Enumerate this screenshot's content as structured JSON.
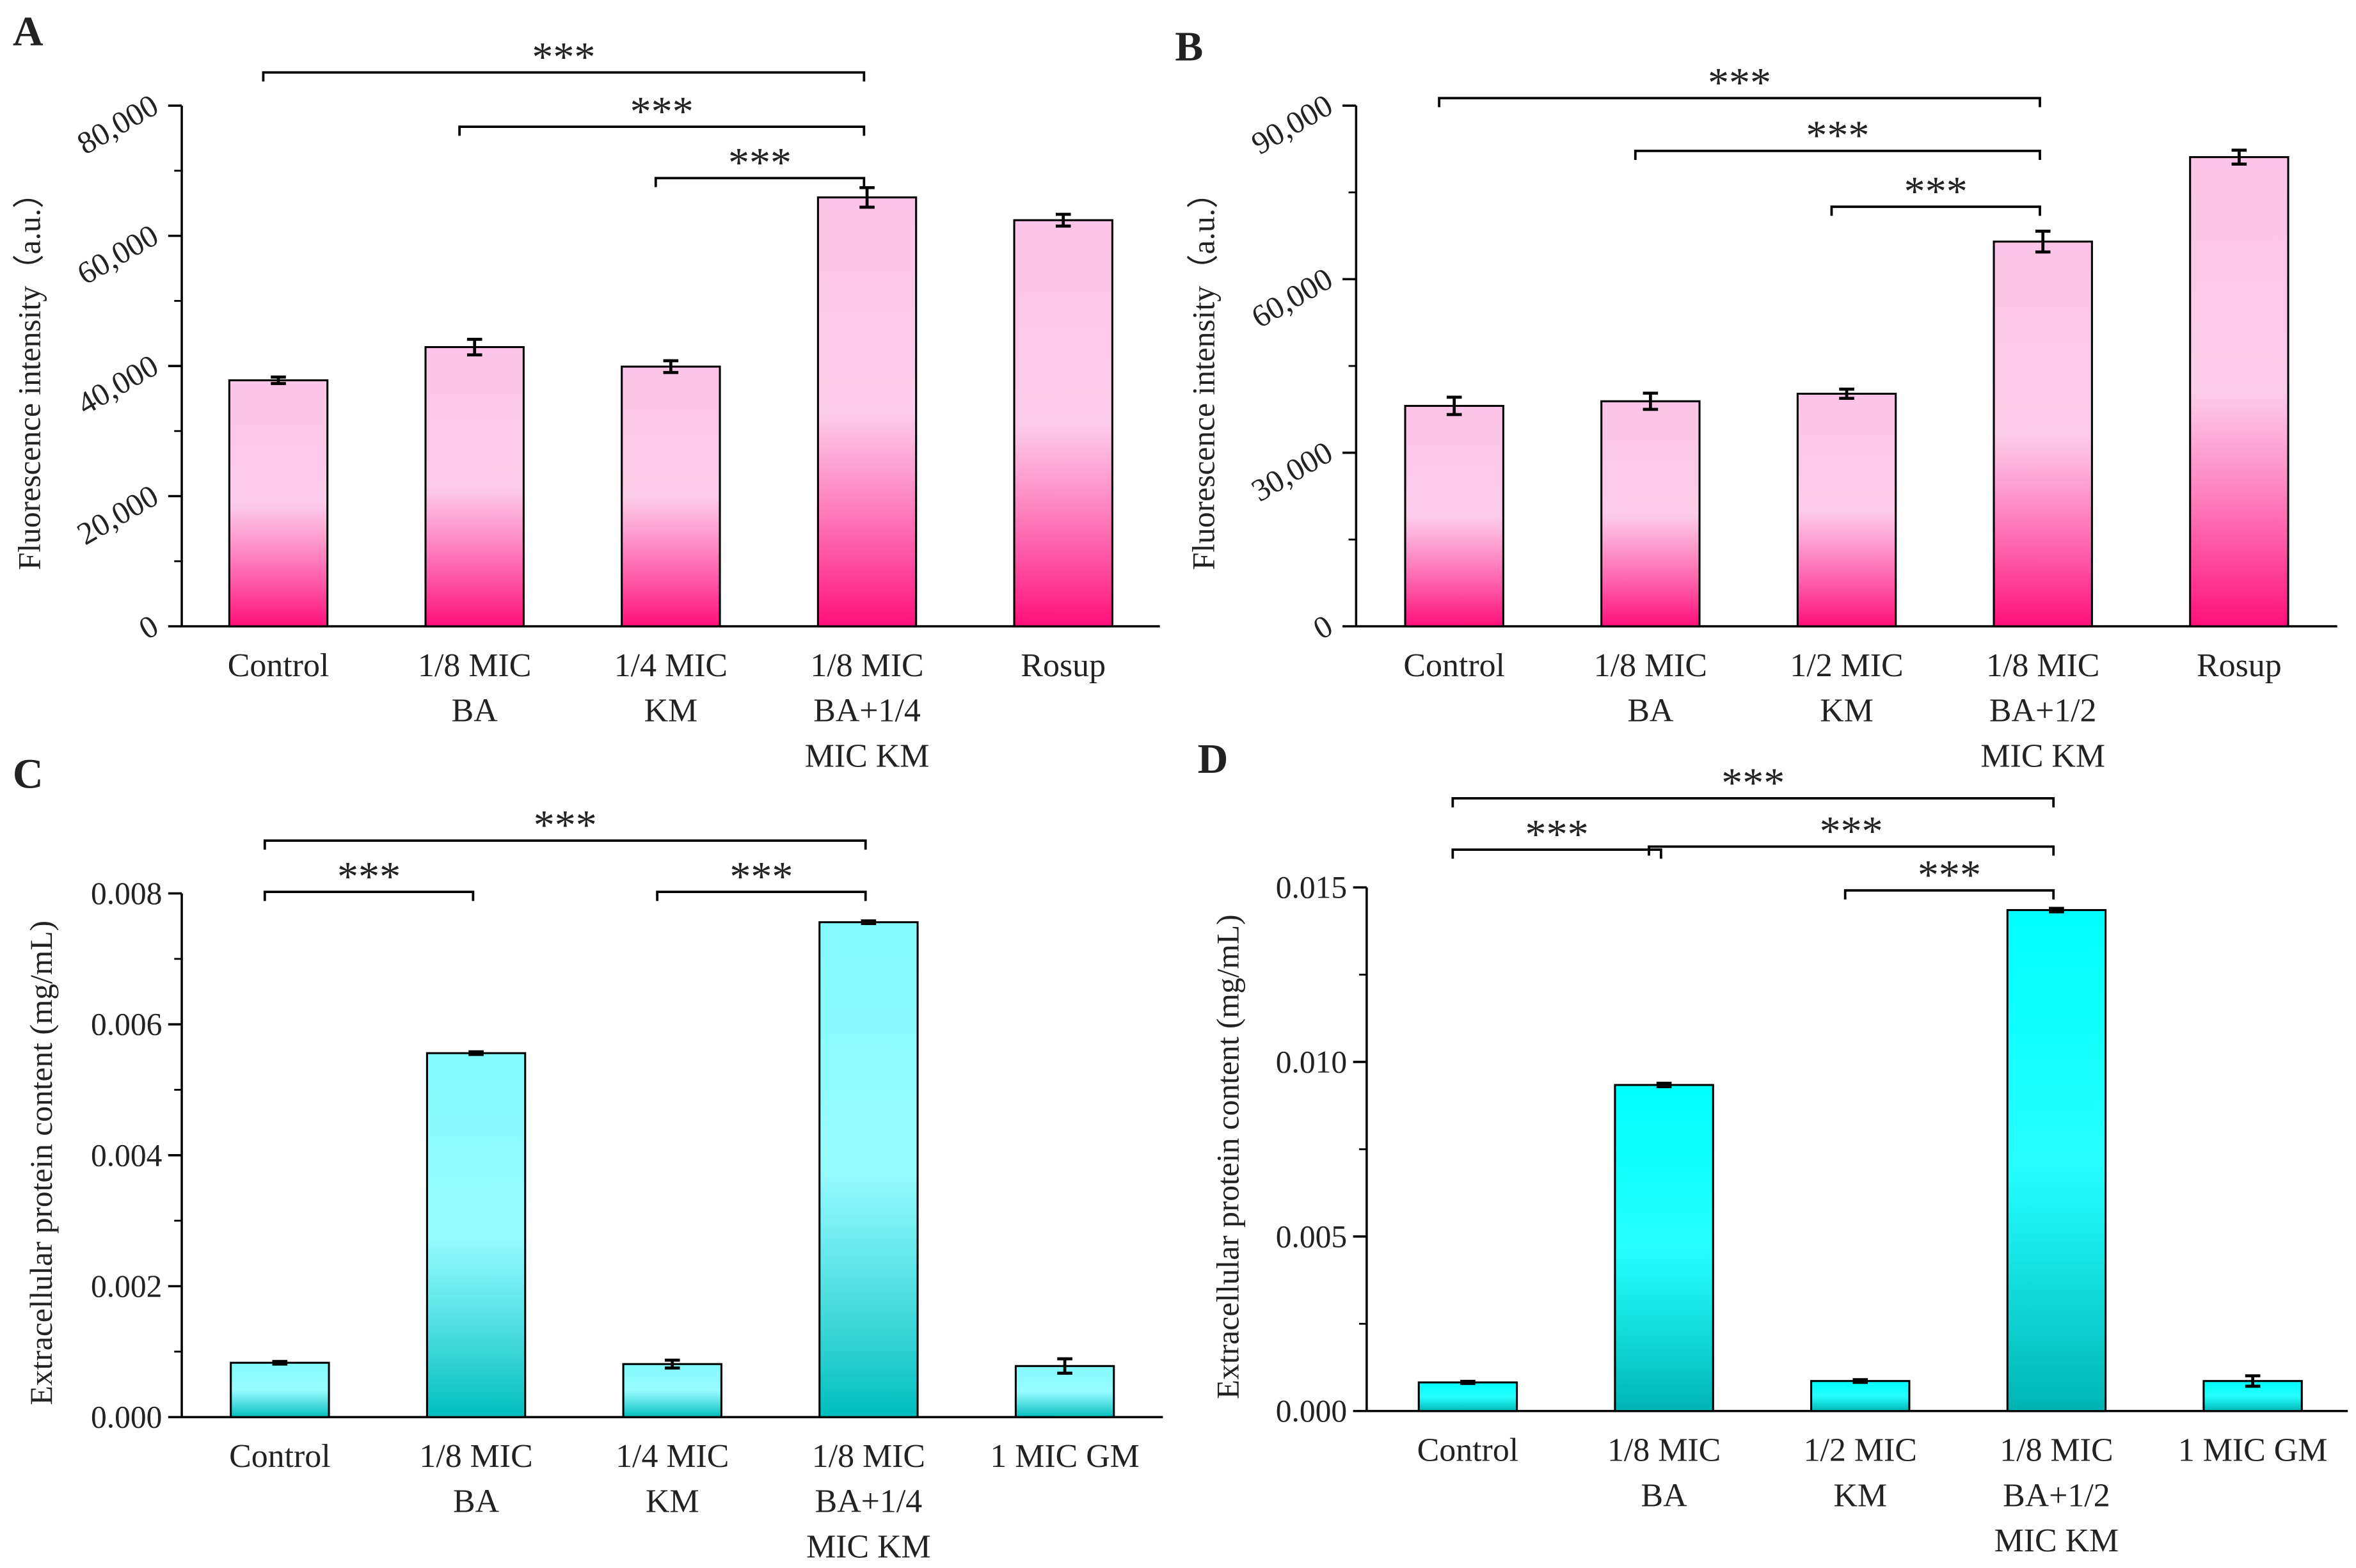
{
  "chart_data": [
    {
      "panel": "A",
      "type": "bar",
      "categories": [
        [
          "Control"
        ],
        [
          "1/8 MIC",
          "BA"
        ],
        [
          "1/4 MIC",
          "KM"
        ],
        [
          "1/8 MIC",
          "BA+1/4",
          "MIC KM"
        ],
        [
          "Rosup"
        ]
      ],
      "values": [
        37800,
        42900,
        39900,
        65900,
        62400
      ],
      "errors": [
        500,
        1200,
        900,
        1500,
        900
      ],
      "ylabel": "Fluorescence intensity（a.u.）",
      "ylim": [
        0,
        80000
      ],
      "yticks": [
        "0",
        "20,000",
        "40,000",
        "60,000",
        "80,000"
      ],
      "ytick_values": [
        0,
        20000,
        40000,
        60000,
        80000
      ],
      "significance": [
        {
          "from": 0,
          "to": 3,
          "label": "***"
        },
        {
          "from": 1,
          "to": 3,
          "label": "***"
        },
        {
          "from": 2,
          "to": 3,
          "label": "***"
        }
      ],
      "colors": {
        "top": "#fcc4e6",
        "bottom": "#ff0f7b"
      }
    },
    {
      "panel": "B",
      "type": "bar",
      "categories": [
        [
          "Control"
        ],
        [
          "1/8 MIC",
          "BA"
        ],
        [
          "1/2 MIC",
          "KM"
        ],
        [
          "1/8 MIC",
          "BA+1/2",
          "MIC KM"
        ],
        [
          "Rosup"
        ]
      ],
      "values": [
        38100,
        38900,
        40200,
        66500,
        81100
      ],
      "errors": [
        1500,
        1400,
        800,
        1800,
        1200
      ],
      "ylabel": "Fluorescence intensity（a.u.）",
      "ylim": [
        0,
        90000
      ],
      "yticks": [
        "0",
        "30,000",
        "60,000",
        "90,000"
      ],
      "ytick_values": [
        0,
        30000,
        60000,
        90000
      ],
      "significance": [
        {
          "from": 0,
          "to": 3,
          "label": "***"
        },
        {
          "from": 1,
          "to": 3,
          "label": "***"
        },
        {
          "from": 2,
          "to": 3,
          "label": "***"
        }
      ],
      "colors": {
        "top": "#fcc4e6",
        "bottom": "#ff0f7b"
      }
    },
    {
      "panel": "C",
      "type": "bar",
      "categories": [
        [
          "Control"
        ],
        [
          "1/8 MIC",
          "BA"
        ],
        [
          "1/4 MIC",
          "KM"
        ],
        [
          "1/8 MIC",
          "BA+1/4",
          "MIC KM"
        ],
        [
          "1 MIC GM"
        ]
      ],
      "values": [
        0.00083,
        0.00556,
        0.00081,
        0.00756,
        0.00078
      ],
      "errors": [
        2e-05,
        2e-05,
        6e-05,
        2e-05,
        0.00011
      ],
      "ylabel": "Extracellular protein content (mg/mL)",
      "ylim": [
        0,
        0.008
      ],
      "yticks": [
        "0.000",
        "0.002",
        "0.004",
        "0.006",
        "0.008"
      ],
      "ytick_values": [
        0,
        0.002,
        0.004,
        0.006,
        0.008
      ],
      "significance": [
        {
          "from": 0,
          "to": 3,
          "label": "***"
        },
        {
          "from": 0,
          "to": 1,
          "label": "***"
        },
        {
          "from": 2,
          "to": 3,
          "label": "***"
        }
      ],
      "colors": {
        "top": "#84fbff",
        "bottom": "#00bdbd"
      }
    },
    {
      "panel": "D",
      "type": "bar",
      "categories": [
        [
          "Control"
        ],
        [
          "1/8 MIC",
          "BA"
        ],
        [
          "1/2 MIC",
          "KM"
        ],
        [
          "1/8 MIC",
          "BA+1/2",
          "MIC KM"
        ],
        [
          "1 MIC GM"
        ]
      ],
      "values": [
        0.00082,
        0.00934,
        0.00086,
        0.01435,
        0.00086
      ],
      "errors": [
        3e-05,
        5e-05,
        4e-05,
        5e-05,
        0.00015
      ],
      "ylabel": "Extracellular protein content (mg/mL)",
      "ylim": [
        0,
        0.015
      ],
      "yticks": [
        "0.000",
        "0.005",
        "0.010",
        "0.015"
      ],
      "ytick_values": [
        0,
        0.005,
        0.01,
        0.015
      ],
      "significance": [
        {
          "from": 0,
          "to": 3,
          "label": "***"
        },
        {
          "from": 0,
          "to": 1,
          "label": "***"
        },
        {
          "from": 1,
          "to": 3,
          "label": "***"
        },
        {
          "from": 2,
          "to": 3,
          "label": "***"
        }
      ],
      "colors": {
        "top": "#00ffff",
        "bottom": "#00b3b3"
      }
    }
  ]
}
